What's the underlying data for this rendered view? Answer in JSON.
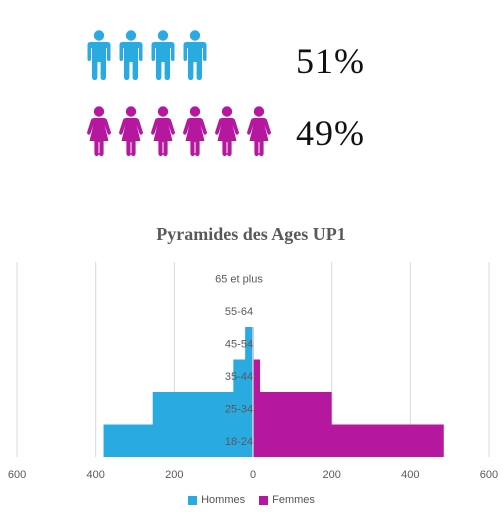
{
  "stats": {
    "men_pct": "51%",
    "women_pct": "49%",
    "men_icon_count": 4,
    "women_icon_count": 6,
    "men_icon": "male-person-icon",
    "women_icon": "female-person-icon"
  },
  "colors": {
    "men": "#29abe2",
    "women": "#b5179e",
    "grid": "#d9d9d9",
    "text": "#595959"
  },
  "chart_data": {
    "type": "bar",
    "orientation": "horizontal-population-pyramid",
    "title": "Pyramides des Ages UP1",
    "categories": [
      "18-24",
      "25-34",
      "35-44",
      "45-54",
      "55-64",
      "65 et plus"
    ],
    "series": [
      {
        "name": "Hommes",
        "values": [
          380,
          255,
          50,
          20,
          0,
          0
        ]
      },
      {
        "name": "Femmes",
        "values": [
          485,
          200,
          18,
          2,
          0,
          0
        ]
      }
    ],
    "xlim": [
      -600,
      600
    ],
    "x_ticks": [
      "600",
      "400",
      "200",
      "0",
      "200",
      "400",
      "600"
    ],
    "grid": true,
    "legend_position": "bottom"
  }
}
